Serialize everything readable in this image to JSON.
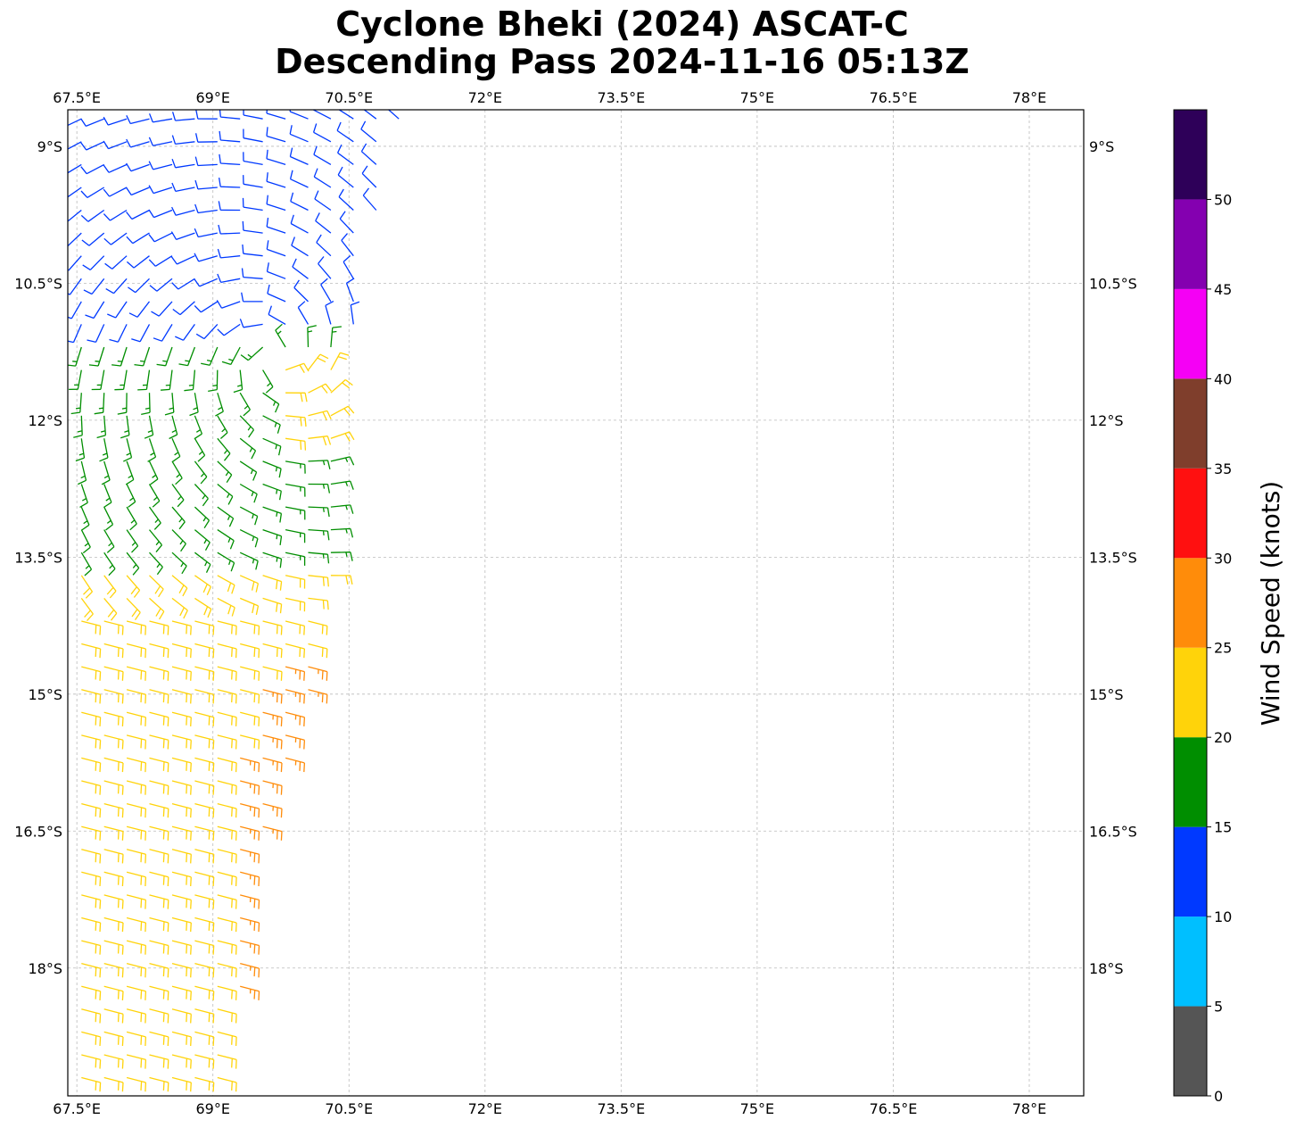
{
  "title": {
    "line1": "Cyclone Bheki (2024) ASCAT-C",
    "line2": "Descending Pass 2024-11-16 05:13Z"
  },
  "map": {
    "lon_range": [
      67.4,
      78.6
    ],
    "lat_range": [
      -19.4,
      -8.6
    ],
    "lon_ticks": [
      {
        "value": 67.5,
        "label": "67.5°E"
      },
      {
        "value": 69,
        "label": "69°E"
      },
      {
        "value": 70.5,
        "label": "70.5°E"
      },
      {
        "value": 72,
        "label": "72°E"
      },
      {
        "value": 73.5,
        "label": "73.5°E"
      },
      {
        "value": 75,
        "label": "75°E"
      },
      {
        "value": 76.5,
        "label": "76.5°E"
      },
      {
        "value": 78,
        "label": "78°E"
      }
    ],
    "lat_ticks": [
      {
        "value": -9,
        "label": "9°S"
      },
      {
        "value": -10.5,
        "label": "10.5°S"
      },
      {
        "value": -12,
        "label": "12°S"
      },
      {
        "value": -13.5,
        "label": "13.5°S"
      },
      {
        "value": -15,
        "label": "15°S"
      },
      {
        "value": -16.5,
        "label": "16.5°S"
      },
      {
        "value": -18,
        "label": "18°S"
      }
    ],
    "gridlines": "dashed",
    "swath_outline_lon_lat": [
      [
        67.5,
        -8.6
      ],
      [
        71.1,
        -8.6
      ],
      [
        70.5,
        -11.2
      ],
      [
        70.5,
        -12.8
      ],
      [
        70.2,
        -14.5
      ],
      [
        69.4,
        -17.0
      ],
      [
        69.2,
        -19.4
      ],
      [
        67.5,
        -19.4
      ]
    ]
  },
  "colorbar": {
    "label": "Wind Speed (knots)",
    "bounds": [
      0,
      5,
      10,
      15,
      20,
      25,
      30,
      35,
      40,
      45,
      50,
      55
    ],
    "tick_values": [
      0,
      5,
      10,
      15,
      20,
      25,
      30,
      35,
      40,
      45,
      50
    ],
    "colors": [
      "#555555",
      "#00bfff",
      "#0039ff",
      "#008e00",
      "#ffd30a",
      "#ff8c0a",
      "#ff1010",
      "#7f3e2c",
      "#f500f5",
      "#8400b0",
      "#2e0059"
    ]
  },
  "wind_field": {
    "type": "barbs",
    "units": "knots",
    "circulation_center_lon_lat": [
      69.7,
      -11.3
    ],
    "zones": [
      {
        "lat_from": -8.6,
        "lat_to": -11.0,
        "speed_knots": 12,
        "color": "#0039ff"
      },
      {
        "lat_from": -11.0,
        "lat_to": -13.5,
        "speed_knots": 17,
        "color": "#008e00"
      },
      {
        "lat_from": -13.5,
        "lat_to": -15.5,
        "speed_knots": 22,
        "color": "#ffd30a"
      },
      {
        "lat_from": -15.5,
        "lat_to": -19.4,
        "speed_knots": 24,
        "color": "#ffd30a"
      },
      {
        "lat_from": -14.5,
        "lat_to": -19.4,
        "speed_knots": 27,
        "color": "#ff8c0a",
        "note_lon_min": 69.0
      }
    ]
  }
}
